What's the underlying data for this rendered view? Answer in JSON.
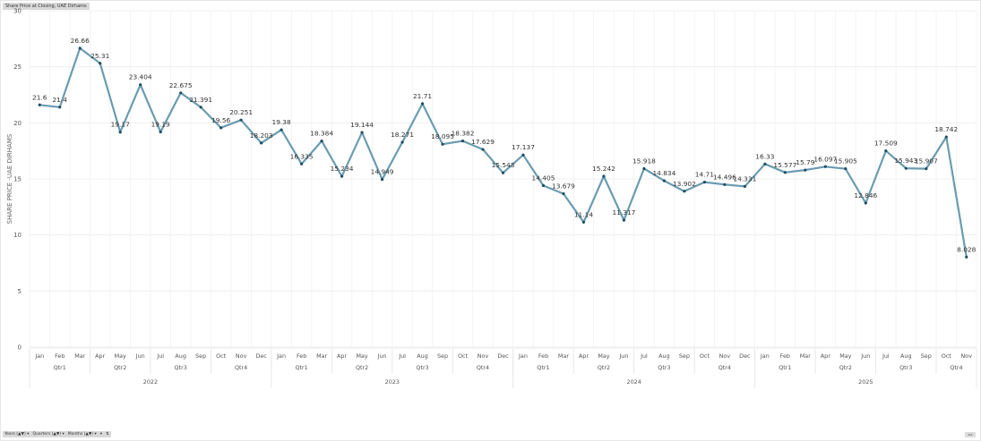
{
  "title": "Share Price at Closing, UAE Dirhams",
  "colors": {
    "line": "#6a9cb0",
    "marker": "#1f4e63",
    "grid": "#ececec"
  },
  "chart_data": {
    "type": "line",
    "title": "Share Price at Closing, UAE Dirhams",
    "xlabel": "",
    "ylabel": "SHARE PRICE -UAE DIRHAMS",
    "ylim": [
      0,
      30
    ],
    "yticks": [
      0,
      5,
      10,
      15,
      20,
      25,
      30
    ],
    "grid": true,
    "legend": "none",
    "x_hierarchy": [
      "Years",
      "Quarters",
      "Months"
    ],
    "categories": [
      "2022 Jan",
      "2022 Feb",
      "2022 Mar",
      "2022 Apr",
      "2022 May",
      "2022 Jun",
      "2022 Jul",
      "2022 Aug",
      "2022 Sep",
      "2022 Oct",
      "2022 Nov",
      "2022 Dec",
      "2023 Jan",
      "2023 Feb",
      "2023 Mar",
      "2023 Apr",
      "2023 May",
      "2023 Jun",
      "2023 Jul",
      "2023 Aug",
      "2023 Sep",
      "2023 Oct",
      "2023 Nov",
      "2023 Dec",
      "2024 Jan",
      "2024 Feb",
      "2024 Mar",
      "2024 Apr",
      "2024 May",
      "2024 Jun",
      "2024 Jul",
      "2024 Aug",
      "2024 Sep",
      "2024 Oct",
      "2024 Nov",
      "2024 Dec",
      "2025 Jan",
      "2025 Feb",
      "2025 Mar",
      "2025 Apr",
      "2025 May",
      "2025 Jun",
      "2025 Jul",
      "2025 Aug",
      "2025 Sep",
      "2025 Oct",
      "2025 Nov"
    ],
    "months": [
      "Jan",
      "Feb",
      "Mar",
      "Apr",
      "May",
      "Jun",
      "Jul",
      "Aug",
      "Sep",
      "Oct",
      "Nov",
      "Dec",
      "Jan",
      "Feb",
      "Mar",
      "Apr",
      "May",
      "Jun",
      "Jul",
      "Aug",
      "Sep",
      "Oct",
      "Nov",
      "Dec",
      "Jan",
      "Feb",
      "Mar",
      "Apr",
      "May",
      "Jun",
      "Jul",
      "Aug",
      "Sep",
      "Oct",
      "Nov",
      "Dec",
      "Jan",
      "Feb",
      "Mar",
      "Apr",
      "May",
      "Jun",
      "Jul",
      "Aug",
      "Sep",
      "Oct",
      "Nov"
    ],
    "quarters": [
      {
        "label": "Qtr1",
        "start": 0,
        "end": 2
      },
      {
        "label": "Qtr2",
        "start": 3,
        "end": 5
      },
      {
        "label": "Qtr3",
        "start": 6,
        "end": 8
      },
      {
        "label": "Qtr4",
        "start": 9,
        "end": 11
      },
      {
        "label": "Qtr1",
        "start": 12,
        "end": 14
      },
      {
        "label": "Qtr2",
        "start": 15,
        "end": 17
      },
      {
        "label": "Qtr3",
        "start": 18,
        "end": 20
      },
      {
        "label": "Qtr4",
        "start": 21,
        "end": 23
      },
      {
        "label": "Qtr1",
        "start": 24,
        "end": 26
      },
      {
        "label": "Qtr2",
        "start": 27,
        "end": 29
      },
      {
        "label": "Qtr3",
        "start": 30,
        "end": 32
      },
      {
        "label": "Qtr4",
        "start": 33,
        "end": 35
      },
      {
        "label": "Qtr1",
        "start": 36,
        "end": 38
      },
      {
        "label": "Qtr2",
        "start": 39,
        "end": 41
      },
      {
        "label": "Qtr3",
        "start": 42,
        "end": 44
      },
      {
        "label": "Qtr4",
        "start": 45,
        "end": 46
      }
    ],
    "years": [
      {
        "label": "2022",
        "start": 0,
        "end": 11
      },
      {
        "label": "2023",
        "start": 12,
        "end": 23
      },
      {
        "label": "2024",
        "start": 24,
        "end": 35
      },
      {
        "label": "2025",
        "start": 36,
        "end": 46
      }
    ],
    "series": [
      {
        "name": "Share Price at Closing",
        "values": [
          21.6,
          21.4,
          26.66,
          25.31,
          19.17,
          23.404,
          19.19,
          22.675,
          21.391,
          19.56,
          20.251,
          18.203,
          19.38,
          16.335,
          18.384,
          15.234,
          19.144,
          14.949,
          18.271,
          21.71,
          18.095,
          18.382,
          17.629,
          15.543,
          17.137,
          14.405,
          13.679,
          11.14,
          15.242,
          11.317,
          15.918,
          14.834,
          13.902,
          14.71,
          14.496,
          14.331,
          16.33,
          15.577,
          15.79,
          16.097,
          15.905,
          12.846,
          17.509,
          15.943,
          15.907,
          18.742,
          8.028
        ],
        "labels": [
          "21.6",
          "21.4",
          "26.66",
          "25.31",
          "19.17",
          "23.404",
          "19.19",
          "22.675",
          "21.391",
          "19.56",
          "20.251",
          "18.203",
          "19.38",
          "16.335",
          "18.384",
          "15.234",
          "19.144",
          "14.949",
          "18.271",
          "21.71",
          "18.095",
          "18.382",
          "17.629",
          "15.543",
          "17.137",
          "14.405",
          "13.679",
          "11.14",
          "15.242",
          "11.317",
          "15.918",
          "14.834",
          "13.902",
          "14.71",
          "14.496",
          "14.331",
          "16.33",
          "15.577",
          "15.79",
          "16.097",
          "15.905",
          "12.846",
          "17.509",
          "15.943",
          "15.907",
          "18.742",
          "8.028"
        ]
      }
    ]
  },
  "bottom_bar": {
    "items": [
      {
        "label": "Years (▲▼)",
        "icon": "chevron-down-icon"
      },
      {
        "label": "Quarters (▲▼)",
        "icon": "chevron-down-icon"
      },
      {
        "label": "Months (▲▼)",
        "icon": "chevron-down-icon"
      }
    ],
    "extra_chevron": "▾",
    "sort_icon": "⇅",
    "nav_label": "◂ ▸"
  }
}
